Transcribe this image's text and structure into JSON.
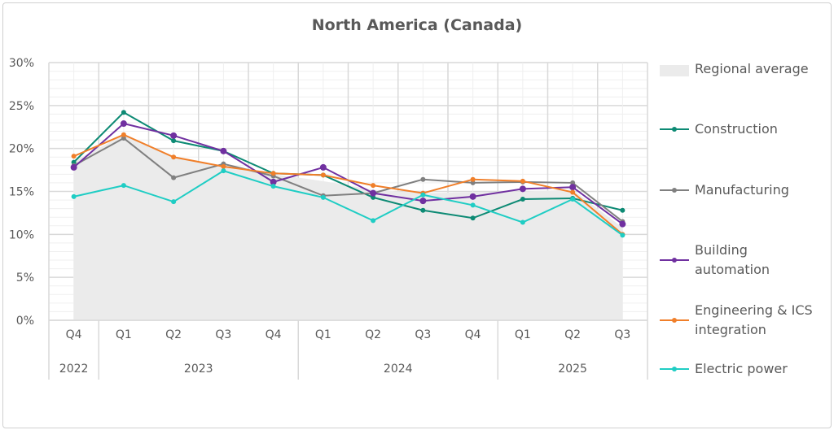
{
  "chart_data": {
    "type": "line",
    "title": "North America (Canada)",
    "categories": [
      "Q4",
      "Q1",
      "Q2",
      "Q3",
      "Q4",
      "Q1",
      "Q2",
      "Q3",
      "Q4",
      "Q1",
      "Q2",
      "Q3"
    ],
    "year_groups": [
      {
        "label": "2022",
        "span": 1
      },
      {
        "label": "2023",
        "span": 4
      },
      {
        "label": "2024",
        "span": 4
      },
      {
        "label": "2025",
        "span": 3
      }
    ],
    "ylim": [
      0,
      30
    ],
    "yticks": [
      "0%",
      "5%",
      "10%",
      "15%",
      "20%",
      "25%",
      "30%"
    ],
    "ytick_values": [
      0,
      5,
      10,
      15,
      20,
      25,
      30
    ],
    "grid": true,
    "legend_position": "right",
    "area": {
      "name": "Regional average",
      "color": "#ebebeb",
      "values": [
        18.5,
        21.6,
        19.0,
        18.0,
        17.0,
        16.2,
        15.2,
        14.8,
        14.9,
        15.0,
        15.2,
        10.8
      ]
    },
    "series": [
      {
        "name": "Construction",
        "color": "#0d8a74",
        "values": [
          18.4,
          24.2,
          20.9,
          19.7,
          17.1,
          16.9,
          14.3,
          12.8,
          11.9,
          14.1,
          14.2,
          12.8
        ]
      },
      {
        "name": "Manufacturing",
        "color": "#808080",
        "values": [
          18.0,
          21.2,
          16.6,
          18.2,
          16.8,
          14.5,
          14.8,
          16.4,
          16.0,
          16.1,
          16.0,
          11.5
        ]
      },
      {
        "name": "Building automation",
        "color": "#7030a0",
        "values": [
          17.8,
          22.9,
          21.5,
          19.7,
          16.1,
          17.8,
          14.8,
          13.9,
          14.4,
          15.3,
          15.5,
          11.2
        ]
      },
      {
        "name": "Engineering & ICS integration",
        "color": "#f07f2a",
        "values": [
          19.1,
          21.6,
          19.0,
          17.9,
          17.1,
          16.9,
          15.7,
          14.8,
          16.4,
          16.2,
          14.9,
          10.0
        ]
      },
      {
        "name": "Electric power",
        "color": "#1fcdc4",
        "values": [
          14.4,
          15.7,
          13.8,
          17.4,
          15.6,
          14.3,
          11.6,
          14.6,
          13.4,
          11.4,
          14.1,
          9.9
        ]
      }
    ]
  },
  "legend": {
    "area_label": "Regional average",
    "labels": [
      [
        "Construction"
      ],
      [
        "Manufacturing"
      ],
      [
        "Building",
        "automation"
      ],
      [
        "Engineering & ICS",
        "integration"
      ],
      [
        "Electric power"
      ]
    ]
  }
}
